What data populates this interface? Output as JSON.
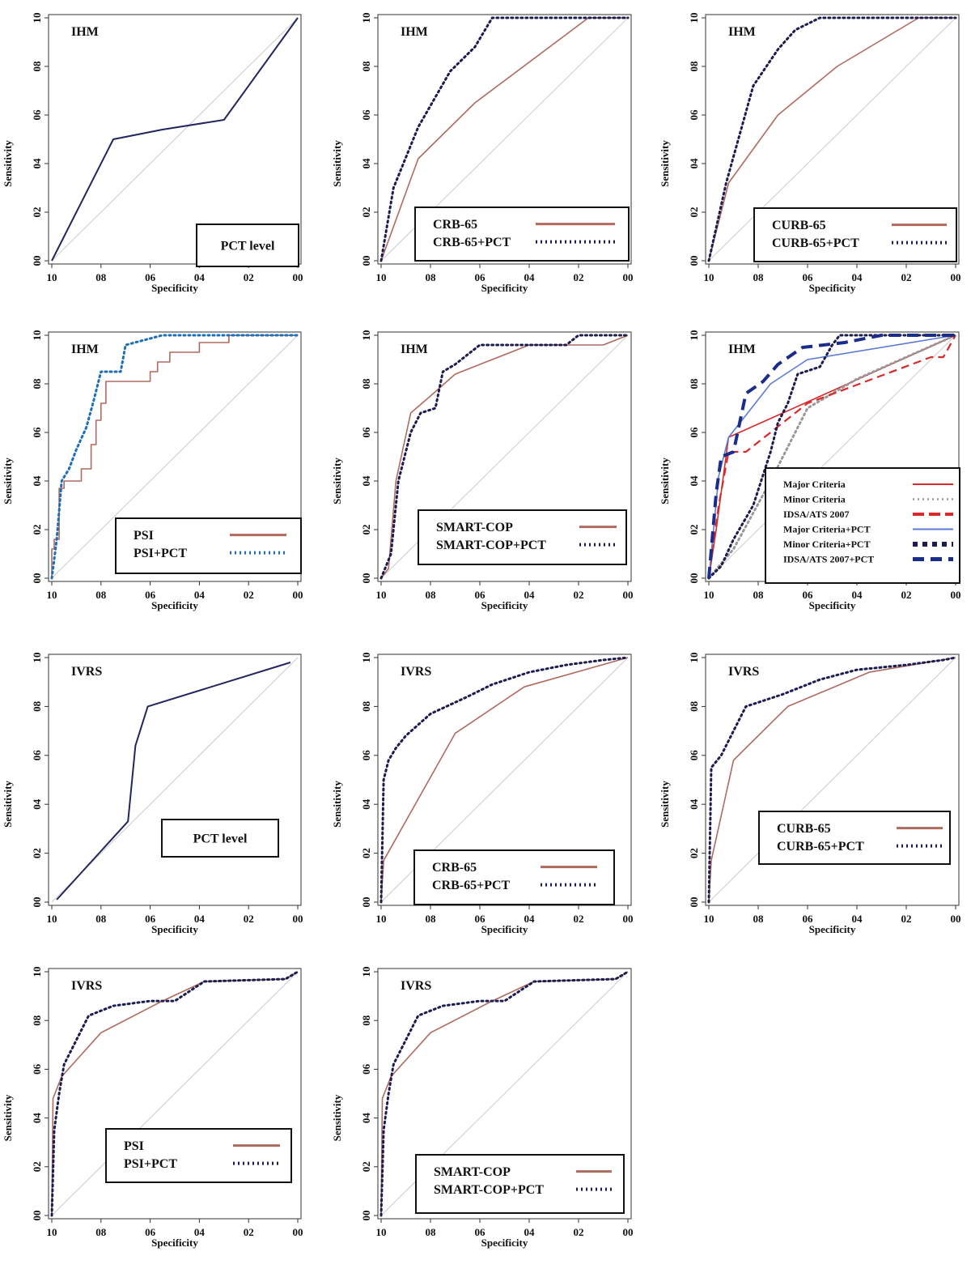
{
  "colors": {
    "brown": "#b06a5e",
    "red": "#d62b2b",
    "navy": "#22255e",
    "blue": "#1f6fb6",
    "darkblue": "#1a2c8c",
    "lightblue": "#5b7bd6",
    "darkdot": "#1c1c50",
    "grey": "#999999"
  },
  "chart_data": [
    {
      "type": "line",
      "title": "IHM",
      "xlabel": "Specificity",
      "ylabel": "Sensitivity",
      "xlim": [
        1,
        0
      ],
      "ylim": [
        0,
        1
      ],
      "xticks": [
        "10",
        "08",
        "06",
        "04",
        "02",
        "00"
      ],
      "yticks": [
        "00",
        "02",
        "04",
        "06",
        "08",
        "10"
      ],
      "legend": {
        "position": "bottom-right",
        "entries": [
          "PCT level"
        ]
      },
      "series": [
        {
          "name": "PCT level",
          "color": "navy",
          "style": "solid",
          "x": [
            1.0,
            0.75,
            0.55,
            0.3,
            0.0
          ],
          "y": [
            0.0,
            0.5,
            0.54,
            0.58,
            1.0
          ]
        }
      ]
    },
    {
      "type": "line",
      "title": "IHM",
      "xlabel": "Specificity",
      "ylabel": "Sensitivity",
      "xlim": [
        1,
        0
      ],
      "ylim": [
        0,
        1
      ],
      "xticks": [
        "10",
        "08",
        "06",
        "04",
        "02",
        "00"
      ],
      "yticks": [
        "00",
        "02",
        "04",
        "06",
        "08",
        "10"
      ],
      "legend": {
        "position": "bottom-right",
        "entries": [
          "CRB-65",
          "CRB-65+PCT"
        ]
      },
      "series": [
        {
          "name": "CRB-65",
          "color": "brown",
          "style": "solid",
          "x": [
            1.0,
            0.85,
            0.62,
            0.16,
            0.0
          ],
          "y": [
            0.0,
            0.42,
            0.65,
            1.0,
            1.0
          ]
        },
        {
          "name": "CRB-65+PCT",
          "color": "darkdot",
          "style": "dotted",
          "x": [
            1.0,
            0.95,
            0.85,
            0.72,
            0.62,
            0.55,
            0.25,
            0.0
          ],
          "y": [
            0.0,
            0.3,
            0.55,
            0.78,
            0.88,
            1.0,
            1.0,
            1.0
          ]
        }
      ]
    },
    {
      "type": "line",
      "title": "IHM",
      "xlabel": "Specificity",
      "ylabel": "Sensitivity",
      "xlim": [
        1,
        0
      ],
      "ylim": [
        0,
        1
      ],
      "xticks": [
        "10",
        "08",
        "06",
        "04",
        "02",
        "00"
      ],
      "yticks": [
        "00",
        "02",
        "04",
        "06",
        "08",
        "10"
      ],
      "legend": {
        "position": "bottom-right",
        "entries": [
          "CURB-65",
          "CURB-65+PCT"
        ]
      },
      "series": [
        {
          "name": "CURB-65",
          "color": "brown",
          "style": "solid",
          "x": [
            1.0,
            0.92,
            0.72,
            0.48,
            0.15,
            0.0
          ],
          "y": [
            0.0,
            0.32,
            0.6,
            0.8,
            1.0,
            1.0
          ]
        },
        {
          "name": "CURB-65+PCT",
          "color": "darkdot",
          "style": "dotted",
          "x": [
            1.0,
            0.93,
            0.82,
            0.72,
            0.65,
            0.55,
            0.3,
            0.0
          ],
          "y": [
            0.0,
            0.32,
            0.72,
            0.87,
            0.95,
            1.0,
            1.0,
            1.0
          ]
        }
      ]
    },
    {
      "type": "line",
      "title": "IHM",
      "xlabel": "Specificity",
      "ylabel": "Sensitivity",
      "xlim": [
        1,
        0
      ],
      "ylim": [
        0,
        1
      ],
      "xticks": [
        "10",
        "08",
        "06",
        "04",
        "02",
        "00"
      ],
      "yticks": [
        "00",
        "02",
        "04",
        "06",
        "08",
        "10"
      ],
      "legend": {
        "position": "bottom-right",
        "entries": [
          "PSI",
          "PSI+PCT"
        ]
      },
      "series": [
        {
          "name": "PSI",
          "color": "brown",
          "style": "step",
          "x": [
            1.0,
            0.99,
            0.97,
            0.95,
            0.92,
            0.88,
            0.84,
            0.82,
            0.8,
            0.78,
            0.75,
            0.6,
            0.57,
            0.52,
            0.47,
            0.4,
            0.28,
            0.2,
            0.0
          ],
          "y": [
            0.0,
            0.12,
            0.16,
            0.37,
            0.4,
            0.4,
            0.45,
            0.55,
            0.65,
            0.72,
            0.81,
            0.81,
            0.85,
            0.89,
            0.93,
            0.93,
            0.97,
            1.0,
            1.0
          ]
        },
        {
          "name": "PSI+PCT",
          "color": "blue",
          "style": "dotted",
          "x": [
            1.0,
            0.98,
            0.96,
            0.93,
            0.9,
            0.86,
            0.83,
            0.8,
            0.72,
            0.7,
            0.55,
            0.3,
            0.0
          ],
          "y": [
            0.0,
            0.16,
            0.4,
            0.45,
            0.53,
            0.62,
            0.73,
            0.85,
            0.85,
            0.96,
            1.0,
            1.0,
            1.0
          ]
        }
      ]
    },
    {
      "type": "line",
      "title": "IHM",
      "xlabel": "Specificity",
      "ylabel": "Sensitivity",
      "xlim": [
        1,
        0
      ],
      "ylim": [
        0,
        1
      ],
      "xticks": [
        "10",
        "08",
        "06",
        "04",
        "02",
        "00"
      ],
      "yticks": [
        "00",
        "02",
        "04",
        "06",
        "08",
        "10"
      ],
      "legend": {
        "position": "bottom-right",
        "entries": [
          "SMART-COP",
          "SMART-COP+PCT"
        ]
      },
      "series": [
        {
          "name": "SMART-COP",
          "color": "brown",
          "style": "solid",
          "x": [
            1.0,
            0.97,
            0.94,
            0.88,
            0.8,
            0.7,
            0.4,
            0.1,
            0.0
          ],
          "y": [
            0.0,
            0.04,
            0.4,
            0.68,
            0.75,
            0.84,
            0.96,
            0.96,
            1.0
          ]
        },
        {
          "name": "SMART-COP+PCT",
          "color": "darkdot",
          "style": "dotted",
          "x": [
            1.0,
            0.96,
            0.93,
            0.88,
            0.84,
            0.78,
            0.75,
            0.7,
            0.6,
            0.25,
            0.2,
            0.0
          ],
          "y": [
            0.0,
            0.1,
            0.4,
            0.6,
            0.68,
            0.7,
            0.85,
            0.88,
            0.96,
            0.96,
            1.0,
            1.0
          ]
        }
      ]
    },
    {
      "type": "line",
      "title": "IHM",
      "xlabel": "Specificity",
      "ylabel": "Sensitivity",
      "xlim": [
        1,
        0
      ],
      "ylim": [
        0,
        1
      ],
      "xticks": [
        "10",
        "08",
        "06",
        "04",
        "02",
        "00"
      ],
      "yticks": [
        "00",
        "02",
        "04",
        "06",
        "08",
        "10"
      ],
      "legend": {
        "position": "bottom-right",
        "entries": [
          "Major Criteria",
          "Minor Criteria",
          "IDSA/ATS 2007",
          "Major Criteria+PCT",
          "Minor Criteria+PCT",
          "IDSA/ATS 2007+PCT"
        ]
      },
      "series": [
        {
          "name": "Major Criteria",
          "color": "red",
          "style": "solid",
          "x": [
            1.0,
            0.97,
            0.92,
            0.7,
            0.0
          ],
          "y": [
            0.0,
            0.2,
            0.58,
            0.68,
            1.0
          ]
        },
        {
          "name": "Minor Criteria",
          "color": "grey",
          "style": "dotted",
          "x": [
            1.0,
            0.9,
            0.75,
            0.6,
            0.4,
            0.0
          ],
          "y": [
            0.0,
            0.12,
            0.4,
            0.7,
            0.82,
            1.0
          ]
        },
        {
          "name": "IDSA/ATS 2007",
          "color": "red",
          "style": "dashed",
          "x": [
            1.0,
            0.96,
            0.92,
            0.85,
            0.6,
            0.1,
            0.05,
            0.0
          ],
          "y": [
            0.0,
            0.3,
            0.52,
            0.52,
            0.72,
            0.91,
            0.91,
            1.0
          ]
        },
        {
          "name": "Major Criteria+PCT",
          "color": "lightblue",
          "style": "solid",
          "x": [
            1.0,
            0.96,
            0.92,
            0.75,
            0.6,
            0.0
          ],
          "y": [
            0.0,
            0.42,
            0.58,
            0.8,
            0.9,
            1.0
          ]
        },
        {
          "name": "Minor Criteria+PCT",
          "color": "darkdot",
          "style": "dotted",
          "x": [
            1.0,
            0.95,
            0.9,
            0.82,
            0.75,
            0.72,
            0.68,
            0.64,
            0.55,
            0.5,
            0.47,
            0.0
          ],
          "y": [
            0.0,
            0.05,
            0.16,
            0.3,
            0.52,
            0.64,
            0.72,
            0.84,
            0.87,
            0.96,
            1.0,
            1.0
          ]
        },
        {
          "name": "IDSA/ATS 2007+PCT",
          "color": "darkblue",
          "style": "dashed",
          "x": [
            1.0,
            0.97,
            0.95,
            0.9,
            0.85,
            0.78,
            0.72,
            0.62,
            0.45,
            0.3,
            0.0
          ],
          "y": [
            0.0,
            0.35,
            0.5,
            0.52,
            0.76,
            0.81,
            0.88,
            0.95,
            0.97,
            1.0,
            1.0
          ]
        }
      ]
    },
    {
      "type": "line",
      "title": "IVRS",
      "xlabel": "Specificity",
      "ylabel": "Sensitivity",
      "xlim": [
        1,
        0
      ],
      "ylim": [
        0,
        1
      ],
      "xticks": [
        "10",
        "08",
        "06",
        "04",
        "02",
        "00"
      ],
      "yticks": [
        "00",
        "02",
        "04",
        "06",
        "08",
        "10"
      ],
      "legend": {
        "position": "center",
        "entries": [
          "PCT level"
        ]
      },
      "series": [
        {
          "name": "PCT level",
          "color": "navy",
          "style": "solid",
          "x": [
            0.98,
            0.69,
            0.66,
            0.61,
            0.03
          ],
          "y": [
            0.01,
            0.33,
            0.64,
            0.8,
            0.98
          ]
        }
      ]
    },
    {
      "type": "line",
      "title": "IVRS",
      "xlabel": "Specificity",
      "ylabel": "Sensitivity",
      "xlim": [
        1,
        0
      ],
      "ylim": [
        0,
        1
      ],
      "xticks": [
        "10",
        "08",
        "06",
        "04",
        "02",
        "00"
      ],
      "yticks": [
        "00",
        "02",
        "04",
        "06",
        "08",
        "10"
      ],
      "legend": {
        "position": "bottom-right",
        "entries": [
          "CRB-65",
          "CRB-65+PCT"
        ]
      },
      "series": [
        {
          "name": "CRB-65",
          "color": "brown",
          "style": "solid",
          "x": [
            1.0,
            0.99,
            0.7,
            0.42,
            0.0
          ],
          "y": [
            0.0,
            0.17,
            0.69,
            0.88,
            1.0
          ]
        },
        {
          "name": "CRB-65+PCT",
          "color": "darkdot",
          "style": "dotted",
          "x": [
            1.0,
            0.99,
            0.97,
            0.94,
            0.9,
            0.8,
            0.65,
            0.55,
            0.4,
            0.25,
            0.1,
            0.0
          ],
          "y": [
            0.0,
            0.5,
            0.58,
            0.63,
            0.68,
            0.77,
            0.84,
            0.89,
            0.94,
            0.97,
            0.99,
            1.0
          ]
        }
      ]
    },
    {
      "type": "line",
      "title": "IVRS",
      "xlabel": "Specificity",
      "ylabel": "Sensitivity",
      "xlim": [
        1,
        0
      ],
      "ylim": [
        0,
        1
      ],
      "xticks": [
        "10",
        "08",
        "06",
        "04",
        "02",
        "00"
      ],
      "yticks": [
        "00",
        "02",
        "04",
        "06",
        "08",
        "10"
      ],
      "legend": {
        "position": "bottom-right",
        "entries": [
          "CURB-65",
          "CURB-65+PCT"
        ]
      },
      "series": [
        {
          "name": "CURB-65",
          "color": "brown",
          "style": "solid",
          "x": [
            1.0,
            0.99,
            0.9,
            0.68,
            0.35,
            0.0
          ],
          "y": [
            0.0,
            0.17,
            0.58,
            0.8,
            0.94,
            1.0
          ]
        },
        {
          "name": "CURB-65+PCT",
          "color": "darkdot",
          "style": "dotted",
          "x": [
            1.0,
            0.99,
            0.95,
            0.9,
            0.85,
            0.7,
            0.55,
            0.4,
            0.2,
            0.05,
            0.0
          ],
          "y": [
            0.0,
            0.55,
            0.6,
            0.7,
            0.8,
            0.85,
            0.91,
            0.95,
            0.97,
            0.99,
            1.0
          ]
        }
      ]
    },
    {
      "type": "line",
      "title": "IVRS",
      "xlabel": "Specificity",
      "ylabel": "Sensitivity",
      "xlim": [
        1,
        0
      ],
      "ylim": [
        0,
        1
      ],
      "xticks": [
        "10",
        "08",
        "06",
        "04",
        "02",
        "00"
      ],
      "yticks": [
        "00",
        "02",
        "04",
        "06",
        "08",
        "10"
      ],
      "legend": {
        "position": "bottom-left",
        "entries": [
          "PSI",
          "PSI+PCT"
        ]
      },
      "series": [
        {
          "name": "PSI",
          "color": "brown",
          "style": "solid",
          "x": [
            1.0,
            0.995,
            0.96,
            0.8,
            0.55,
            0.38,
            0.05,
            0.0
          ],
          "y": [
            0.0,
            0.48,
            0.57,
            0.75,
            0.88,
            0.96,
            0.97,
            1.0
          ]
        },
        {
          "name": "PSI+PCT",
          "color": "darkdot",
          "style": "dotted",
          "x": [
            1.0,
            0.99,
            0.97,
            0.95,
            0.9,
            0.85,
            0.75,
            0.6,
            0.5,
            0.38,
            0.05,
            0.0
          ],
          "y": [
            0.0,
            0.35,
            0.5,
            0.62,
            0.72,
            0.82,
            0.86,
            0.88,
            0.88,
            0.96,
            0.97,
            1.0
          ]
        }
      ]
    },
    {
      "type": "line",
      "title": "IVRS",
      "xlabel": "Specificity",
      "ylabel": "Sensitivity",
      "xlim": [
        1,
        0
      ],
      "ylim": [
        0,
        1
      ],
      "xticks": [
        "10",
        "08",
        "06",
        "04",
        "02",
        "00"
      ],
      "yticks": [
        "00",
        "02",
        "04",
        "06",
        "08",
        "10"
      ],
      "legend": {
        "position": "bottom-right",
        "entries": [
          "SMART-COP",
          "SMART-COP+PCT"
        ]
      },
      "series": [
        {
          "name": "SMART-COP",
          "color": "brown",
          "style": "solid",
          "x": [
            1.0,
            0.995,
            0.96,
            0.8,
            0.55,
            0.38,
            0.05,
            0.0
          ],
          "y": [
            0.0,
            0.48,
            0.57,
            0.75,
            0.88,
            0.96,
            0.97,
            1.0
          ]
        },
        {
          "name": "SMART-COP+PCT",
          "color": "darkdot",
          "style": "dotted",
          "x": [
            1.0,
            0.99,
            0.97,
            0.95,
            0.9,
            0.85,
            0.75,
            0.6,
            0.5,
            0.38,
            0.05,
            0.0
          ],
          "y": [
            0.0,
            0.35,
            0.5,
            0.62,
            0.72,
            0.82,
            0.86,
            0.88,
            0.88,
            0.96,
            0.97,
            1.0
          ]
        }
      ]
    }
  ]
}
